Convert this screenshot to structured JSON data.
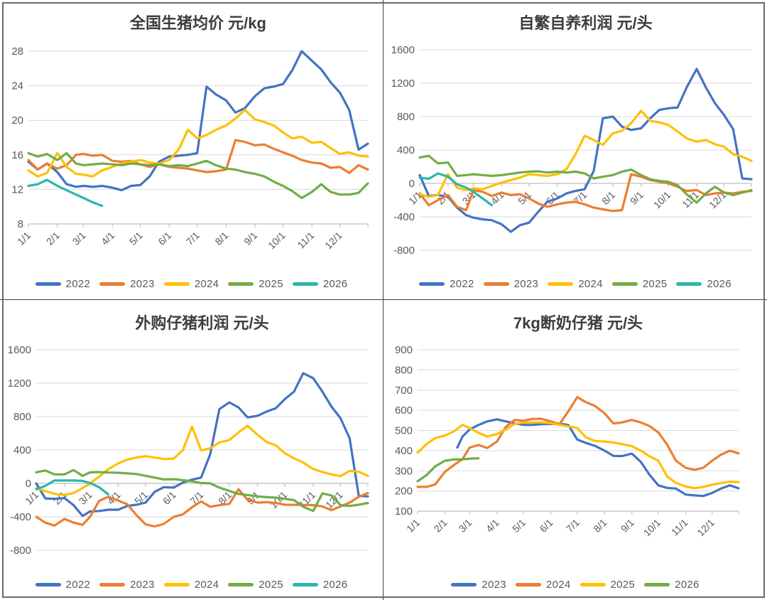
{
  "page": {
    "background": "#ffffff",
    "frame_color": "#6a6a6a",
    "divider_color": "#3f3f3f",
    "gridline_color": "#d9d9d9",
    "axis_color": "#bfbfbf",
    "tick_label_color": "#595959",
    "title_color": "#3d3d3d"
  },
  "palette": {
    "blue": "#4472C4",
    "orange": "#ED7D31",
    "yellow": "#FFC000",
    "green": "#70AD47",
    "teal": "#2CB5B0"
  },
  "chart_data": [
    {
      "id": "national-hog-price",
      "type": "line",
      "title": "全国生猪均价 元/kg",
      "ylim": [
        8,
        28
      ],
      "yticks": [
        28,
        24,
        20,
        16,
        12,
        8
      ],
      "axis_at_zero": false,
      "x_tick_labels": [
        "1/1",
        "2/1",
        "3/1",
        "4/1",
        "5/1",
        "6/1",
        "7/1",
        "8/1",
        "9/1",
        "10/1",
        "11/1",
        "12/1"
      ],
      "x_tick_days": [
        1,
        32,
        60,
        91,
        121,
        152,
        182,
        213,
        244,
        274,
        305,
        335
      ],
      "x_days": [
        1,
        11,
        21,
        32,
        42,
        52,
        60,
        70,
        80,
        91,
        101,
        111,
        121,
        131,
        141,
        152,
        162,
        172,
        182,
        192,
        202,
        213,
        223,
        233,
        244,
        254,
        264,
        274,
        284,
        294,
        305,
        315,
        325,
        335,
        345,
        355,
        365
      ],
      "series": [
        {
          "name": "2022",
          "color": "#4472C4",
          "values": [
            15.2,
            14.3,
            15.0,
            14.0,
            12.6,
            12.3,
            12.4,
            12.3,
            12.4,
            12.2,
            11.9,
            12.4,
            12.5,
            13.5,
            15.2,
            15.8,
            15.9,
            16.0,
            16.2,
            23.9,
            23.0,
            22.3,
            20.9,
            21.4,
            22.8,
            23.7,
            23.9,
            24.2,
            25.8,
            28.0,
            26.9,
            25.9,
            24.4,
            23.2,
            21.2,
            16.6,
            17.3
          ]
        },
        {
          "name": "2023",
          "color": "#ED7D31",
          "values": [
            15.4,
            14.3,
            15.0,
            14.4,
            14.8,
            16.0,
            16.1,
            15.9,
            16.0,
            15.3,
            15.2,
            15.3,
            14.9,
            14.6,
            14.9,
            14.6,
            14.5,
            14.4,
            14.2,
            14.0,
            14.1,
            14.3,
            17.7,
            17.5,
            17.1,
            17.2,
            16.7,
            16.3,
            15.9,
            15.4,
            15.1,
            15.0,
            14.5,
            14.6,
            13.9,
            14.8,
            14.3
          ]
        },
        {
          "name": "2024",
          "color": "#FFC000",
          "values": [
            14.2,
            13.5,
            13.9,
            16.2,
            14.6,
            13.8,
            13.7,
            13.5,
            14.2,
            14.6,
            15.0,
            15.2,
            15.4,
            15.1,
            15.0,
            15.4,
            16.6,
            18.9,
            17.9,
            18.3,
            18.9,
            19.4,
            20.2,
            21.2,
            20.1,
            19.8,
            19.4,
            18.6,
            17.9,
            18.1,
            17.4,
            17.5,
            16.8,
            16.1,
            16.3,
            15.9,
            15.8
          ]
        },
        {
          "name": "2025",
          "color": "#70AD47",
          "values": [
            16.2,
            15.8,
            16.1,
            15.4,
            16.2,
            15.0,
            14.8,
            14.9,
            15.0,
            14.9,
            14.8,
            15.0,
            14.9,
            14.8,
            14.9,
            14.7,
            14.8,
            14.7,
            15.0,
            15.3,
            14.8,
            14.4,
            14.3,
            14.0,
            13.8,
            13.5,
            12.9,
            12.4,
            11.8,
            11.0,
            11.7,
            12.6,
            11.7,
            11.4,
            11.4,
            11.6,
            12.7
          ]
        },
        {
          "name": "2026",
          "color": "#2CB5B0",
          "x_days": [
            1,
            11,
            21,
            32,
            42,
            52,
            60,
            70,
            80
          ],
          "values": [
            12.4,
            12.6,
            13.1,
            12.4,
            11.9,
            11.4,
            11.0,
            10.5,
            10.1
          ]
        }
      ]
    },
    {
      "id": "self-breeding-profit",
      "type": "line",
      "title": "自繁自养利润 元/头",
      "ylim": [
        -800,
        1600
      ],
      "yticks": [
        1600,
        1200,
        800,
        400,
        0,
        -400,
        -800
      ],
      "axis_at_zero": true,
      "x_tick_labels": [
        "1/1",
        "2/1",
        "3/1",
        "4/1",
        "5/1",
        "6/1",
        "7/1",
        "8/1",
        "9/1",
        "10/1",
        "11/1",
        "12/1"
      ],
      "x_tick_days": [
        1,
        32,
        60,
        91,
        121,
        152,
        182,
        213,
        244,
        274,
        305,
        335
      ],
      "x_days": [
        1,
        11,
        21,
        32,
        42,
        52,
        60,
        70,
        80,
        91,
        101,
        111,
        121,
        131,
        141,
        152,
        162,
        172,
        182,
        192,
        202,
        213,
        223,
        233,
        244,
        254,
        264,
        274,
        284,
        294,
        305,
        315,
        325,
        335,
        345,
        355,
        365
      ],
      "series": [
        {
          "name": "2022",
          "color": "#4472C4",
          "values": [
            100,
            -150,
            -140,
            -160,
            -290,
            -380,
            -410,
            -430,
            -440,
            -490,
            -580,
            -500,
            -470,
            -340,
            -220,
            -180,
            -120,
            -90,
            -70,
            150,
            780,
            800,
            680,
            640,
            660,
            780,
            880,
            900,
            910,
            1150,
            1370,
            1150,
            960,
            820,
            650,
            60,
            50
          ]
        },
        {
          "name": "2023",
          "color": "#ED7D31",
          "values": [
            -120,
            -260,
            -200,
            -140,
            -280,
            -320,
            -80,
            -100,
            -150,
            -110,
            -140,
            -130,
            -180,
            -240,
            -280,
            -250,
            -230,
            -220,
            -250,
            -290,
            -310,
            -330,
            -320,
            110,
            80,
            40,
            20,
            0,
            -40,
            -90,
            -80,
            -140,
            -120,
            -110,
            -120,
            -100,
            -90
          ]
        },
        {
          "name": "2024",
          "color": "#FFC000",
          "values": [
            -130,
            -160,
            -140,
            110,
            -50,
            -80,
            -60,
            -70,
            -30,
            10,
            40,
            70,
            110,
            100,
            90,
            110,
            170,
            350,
            570,
            520,
            460,
            600,
            630,
            720,
            870,
            750,
            730,
            700,
            620,
            540,
            500,
            520,
            470,
            440,
            350,
            320,
            270
          ]
        },
        {
          "name": "2025",
          "color": "#70AD47",
          "values": [
            310,
            330,
            240,
            250,
            90,
            100,
            110,
            100,
            90,
            100,
            115,
            130,
            140,
            145,
            130,
            140,
            130,
            140,
            120,
            60,
            80,
            100,
            140,
            165,
            100,
            50,
            30,
            20,
            -20,
            -130,
            -230,
            -120,
            -40,
            -110,
            -140,
            -110,
            -80
          ]
        },
        {
          "name": "2026",
          "color": "#2CB5B0",
          "x_days": [
            1,
            11,
            21,
            32,
            42,
            52,
            60,
            70,
            80
          ],
          "values": [
            70,
            55,
            120,
            80,
            -10,
            -50,
            -100,
            -180,
            -260
          ]
        }
      ]
    },
    {
      "id": "purchased-piglet-profit",
      "type": "line",
      "title": "外购仔猪利润 元/头",
      "ylim": [
        -800,
        1600
      ],
      "yticks": [
        1600,
        1200,
        800,
        400,
        0,
        -400,
        -800
      ],
      "axis_at_zero": true,
      "x_tick_labels": [
        "1/1",
        "2/1",
        "3/1",
        "4/1",
        "5/1",
        "6/1",
        "7/1",
        "8/1",
        "9/1",
        "10/1",
        "11/1",
        "12/1"
      ],
      "x_tick_days": [
        1,
        32,
        60,
        91,
        121,
        152,
        182,
        213,
        244,
        274,
        305,
        335
      ],
      "x_days": [
        1,
        11,
        21,
        32,
        42,
        52,
        60,
        70,
        80,
        91,
        101,
        111,
        121,
        131,
        141,
        152,
        162,
        172,
        182,
        192,
        202,
        213,
        223,
        233,
        244,
        254,
        264,
        274,
        284,
        294,
        305,
        315,
        325,
        335,
        345,
        355,
        365
      ],
      "series": [
        {
          "name": "2022",
          "color": "#4472C4",
          "values": [
            0,
            -180,
            -185,
            -175,
            -260,
            -390,
            -335,
            -330,
            -315,
            -315,
            -270,
            -255,
            -230,
            -100,
            -45,
            -50,
            10,
            45,
            70,
            350,
            890,
            970,
            910,
            790,
            810,
            860,
            900,
            1010,
            1100,
            1320,
            1260,
            1100,
            920,
            780,
            540,
            -150,
            -155
          ]
        },
        {
          "name": "2023",
          "color": "#ED7D31",
          "values": [
            -400,
            -470,
            -505,
            -425,
            -470,
            -495,
            -400,
            -210,
            -160,
            -205,
            -250,
            -380,
            -490,
            -515,
            -485,
            -400,
            -370,
            -285,
            -215,
            -280,
            -260,
            -245,
            -70,
            -195,
            -230,
            -225,
            -235,
            -255,
            -257,
            -257,
            -260,
            -275,
            -320,
            -275,
            -230,
            -160,
            -115
          ]
        },
        {
          "name": "2024",
          "color": "#FFC000",
          "values": [
            -60,
            -90,
            -125,
            -137,
            -115,
            -55,
            0,
            80,
            170,
            240,
            285,
            310,
            326,
            310,
            292,
            298,
            400,
            680,
            395,
            420,
            490,
            520,
            610,
            690,
            580,
            495,
            455,
            360,
            300,
            250,
            172,
            137,
            108,
            87,
            150,
            140,
            90
          ]
        },
        {
          "name": "2025",
          "color": "#70AD47",
          "values": [
            133,
            155,
            108,
            108,
            160,
            90,
            133,
            136,
            130,
            128,
            120,
            112,
            91,
            70,
            48,
            51,
            38,
            25,
            5,
            0,
            -50,
            -90,
            -125,
            -140,
            -155,
            -165,
            -170,
            -185,
            -200,
            -280,
            -330,
            -120,
            -145,
            -260,
            -270,
            -255,
            -235
          ]
        },
        {
          "name": "2026",
          "color": "#2CB5B0",
          "x_days": [
            1,
            11,
            21,
            32,
            42,
            52,
            60,
            70,
            80
          ],
          "values": [
            -70,
            -30,
            35,
            35,
            35,
            30,
            5,
            -45,
            -130
          ]
        }
      ]
    },
    {
      "id": "weaned-piglet-7kg",
      "type": "line",
      "title": "7kg断奶仔猪 元/头",
      "ylim": [
        100,
        900
      ],
      "yticks": [
        900,
        800,
        700,
        600,
        500,
        400,
        300,
        200,
        100
      ],
      "axis_at_zero": false,
      "x_tick_labels": [
        "1/1",
        "2/1",
        "3/1",
        "4/1",
        "5/1",
        "6/1",
        "7/1",
        "8/1",
        "9/1",
        "10/1",
        "11/1",
        "12/1"
      ],
      "x_tick_days": [
        1,
        32,
        60,
        91,
        121,
        152,
        182,
        213,
        244,
        274,
        305,
        335
      ],
      "x_days": [
        1,
        11,
        21,
        32,
        42,
        52,
        60,
        70,
        80,
        91,
        101,
        111,
        121,
        131,
        141,
        152,
        162,
        172,
        182,
        192,
        202,
        213,
        223,
        233,
        244,
        254,
        264,
        274,
        284,
        294,
        305,
        315,
        325,
        335,
        345,
        355,
        365
      ],
      "series": [
        {
          "name": "2023",
          "color": "#4472C4",
          "x_days": [
            46,
            52,
            60,
            70,
            80,
            91,
            101,
            111,
            121,
            131,
            141,
            152,
            162,
            172,
            182,
            192,
            202,
            213,
            223,
            233,
            244,
            254,
            264,
            274,
            284,
            294,
            305,
            315,
            325,
            335,
            345,
            355,
            365
          ],
          "values": [
            415,
            470,
            505,
            527,
            545,
            555,
            545,
            535,
            528,
            527,
            531,
            532,
            534,
            527,
            455,
            438,
            424,
            400,
            374,
            373,
            385,
            345,
            280,
            228,
            215,
            212,
            182,
            178,
            175,
            190,
            212,
            228,
            213
          ]
        },
        {
          "name": "2024",
          "color": "#ED7D31",
          "values": [
            220,
            220,
            232,
            295,
            328,
            358,
            415,
            428,
            413,
            445,
            518,
            552,
            548,
            557,
            558,
            545,
            531,
            595,
            665,
            640,
            622,
            585,
            535,
            540,
            552,
            540,
            522,
            490,
            430,
            350,
            315,
            305,
            315,
            350,
            380,
            400,
            386
          ]
        },
        {
          "name": "2025",
          "color": "#FFC000",
          "values": [
            390,
            432,
            462,
            475,
            495,
            528,
            512,
            488,
            470,
            482,
            505,
            532,
            540,
            539,
            540,
            536,
            528,
            520,
            512,
            465,
            448,
            445,
            440,
            432,
            422,
            400,
            372,
            350,
            272,
            240,
            222,
            214,
            220,
            231,
            239,
            246,
            244
          ]
        },
        {
          "name": "2026",
          "color": "#70AD47",
          "x_days": [
            1,
            11,
            21,
            32,
            42,
            52,
            60,
            70
          ],
          "values": [
            248,
            278,
            322,
            350,
            356,
            357,
            360,
            362
          ]
        }
      ]
    }
  ]
}
